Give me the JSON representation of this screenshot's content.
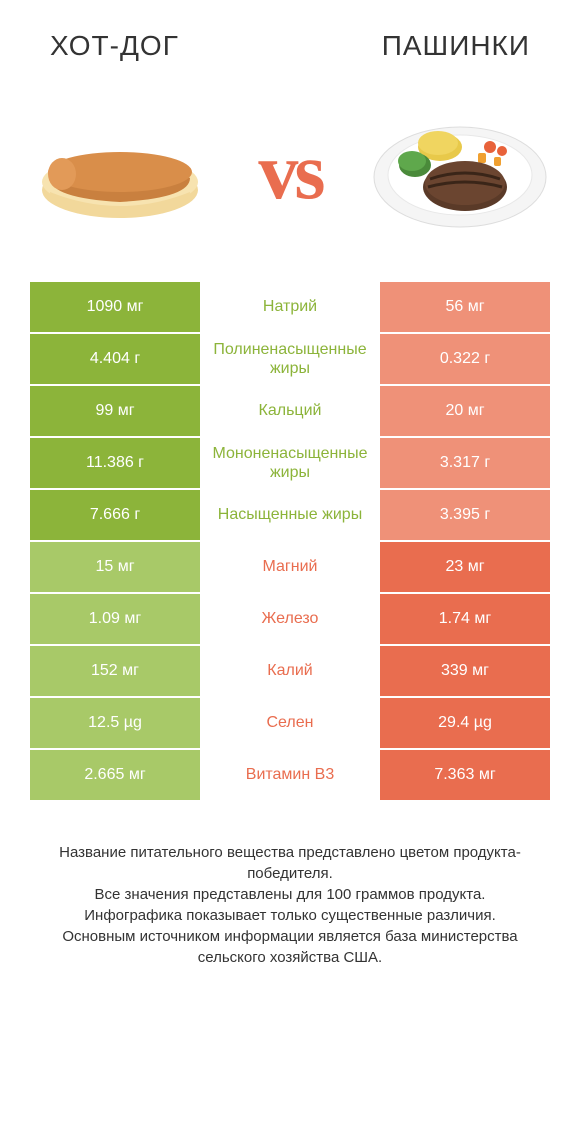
{
  "colors": {
    "left": "#8cb43a",
    "right": "#e96d4f",
    "left_dim": "#a8c968",
    "right_dim": "#ef9178",
    "vs": "#e96d4f",
    "text": "#333333",
    "bg": "#ffffff"
  },
  "header": {
    "left_title": "ХОТ-ДОГ",
    "right_title": "ПАШИНКИ"
  },
  "vs_label": "vs",
  "rows": [
    {
      "left": "1090 мг",
      "mid": "Натрий",
      "right": "56 мг",
      "winner": "left"
    },
    {
      "left": "4.404 г",
      "mid": "Полиненасыщенные жиры",
      "right": "0.322 г",
      "winner": "left"
    },
    {
      "left": "99 мг",
      "mid": "Кальций",
      "right": "20 мг",
      "winner": "left"
    },
    {
      "left": "11.386 г",
      "mid": "Мононенасыщенные жиры",
      "right": "3.317 г",
      "winner": "left"
    },
    {
      "left": "7.666 г",
      "mid": "Насыщенные жиры",
      "right": "3.395 г",
      "winner": "left"
    },
    {
      "left": "15 мг",
      "mid": "Магний",
      "right": "23 мг",
      "winner": "right"
    },
    {
      "left": "1.09 мг",
      "mid": "Железо",
      "right": "1.74 мг",
      "winner": "right"
    },
    {
      "left": "152 мг",
      "mid": "Калий",
      "right": "339 мг",
      "winner": "right"
    },
    {
      "left": "12.5 µg",
      "mid": "Селен",
      "right": "29.4 µg",
      "winner": "right"
    },
    {
      "left": "2.665 мг",
      "mid": "Витамин B3",
      "right": "7.363 мг",
      "winner": "right"
    }
  ],
  "footer": {
    "line1": "Название питательного вещества представлено цветом продукта-победителя.",
    "line2": "Все значения представлены для 100 граммов продукта.",
    "line3": "Инфографика показывает только существенные различия.",
    "line4": "Основным источником информации является база министерства сельского хозяйства США."
  }
}
